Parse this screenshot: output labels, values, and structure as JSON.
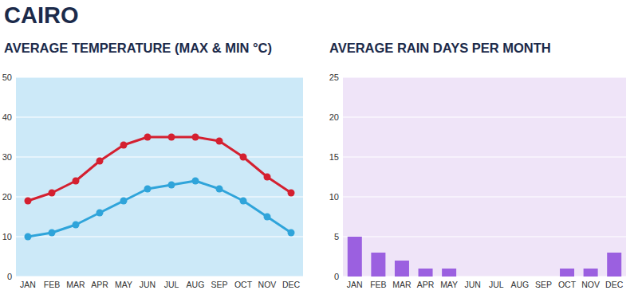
{
  "title": "CAIRO",
  "chart_data": [
    {
      "type": "line",
      "title": "AVERAGE TEMPERATURE (MAX & MIN °C)",
      "categories": [
        "JAN",
        "FEB",
        "MAR",
        "APR",
        "MAY",
        "JUN",
        "JUL",
        "AUG",
        "SEP",
        "OCT",
        "NOV",
        "DEC"
      ],
      "series": [
        {
          "color": "#d42030",
          "marker": "circle",
          "values": [
            19,
            21,
            24,
            29,
            33,
            35,
            35,
            35,
            34,
            30,
            25,
            21
          ]
        },
        {
          "color": "#2fa4da",
          "marker": "circle",
          "values": [
            10,
            11,
            13,
            16,
            19,
            22,
            23,
            24,
            22,
            19,
            15,
            11
          ]
        }
      ],
      "ylim": [
        0,
        50
      ],
      "yticks": [
        0,
        10,
        20,
        30,
        40,
        50
      ],
      "grid": true
    },
    {
      "type": "bar",
      "title": "AVERAGE RAIN DAYS PER MONTH",
      "categories": [
        "JAN",
        "FEB",
        "MAR",
        "APR",
        "MAY",
        "JUN",
        "JUL",
        "AUG",
        "SEP",
        "OCT",
        "NOV",
        "DEC"
      ],
      "values": [
        5,
        3,
        2,
        1,
        1,
        0,
        0,
        0,
        0,
        1,
        1,
        3
      ],
      "color": "#9b60e0",
      "ylim": [
        0,
        25
      ],
      "yticks": [
        0,
        5,
        10,
        15,
        20,
        25
      ],
      "grid": true
    }
  ]
}
